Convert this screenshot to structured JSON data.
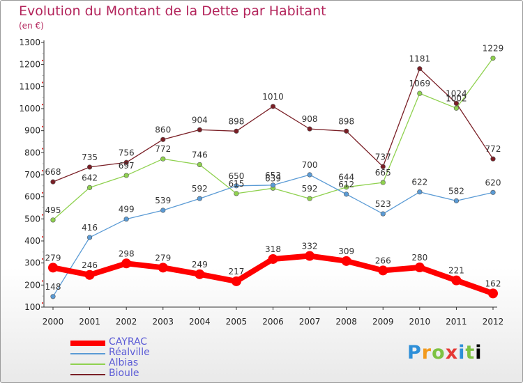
{
  "title": "Evolution du Montant de la Dette par Habitant",
  "subtitle": "(en €)",
  "logo_text": "Proxiti",
  "chart_data": {
    "type": "line",
    "x": [
      "2000",
      "2001",
      "2002",
      "2003",
      "2004",
      "2005",
      "2006",
      "2007",
      "2008",
      "2009",
      "2010",
      "2011",
      "2012"
    ],
    "ylim": [
      100,
      1300
    ],
    "yticks": [
      100,
      200,
      300,
      400,
      500,
      600,
      700,
      800,
      900,
      1000,
      1100,
      1200,
      1300
    ],
    "grid": false,
    "legend_position": "bottom-left",
    "series": [
      {
        "name": "CAYRAC",
        "color": "#ff0000",
        "values": [
          279,
          246,
          298,
          279,
          249,
          217,
          318,
          332,
          309,
          266,
          280,
          221,
          162
        ]
      },
      {
        "name": "Réalville",
        "color": "#5b9bd5",
        "values": [
          148,
          416,
          499,
          539,
          592,
          650,
          653,
          700,
          612,
          523,
          622,
          582,
          620
        ]
      },
      {
        "name": "Albias",
        "color": "#8fd14f",
        "values": [
          495,
          642,
          697,
          772,
          746,
          615,
          639,
          592,
          644,
          665,
          1069,
          1002,
          1229
        ]
      },
      {
        "name": "Bioule",
        "color": "#7a1f26",
        "values": [
          668,
          735,
          756,
          860,
          904,
          898,
          1010,
          908,
          898,
          737,
          1181,
          1024,
          772
        ]
      }
    ]
  }
}
